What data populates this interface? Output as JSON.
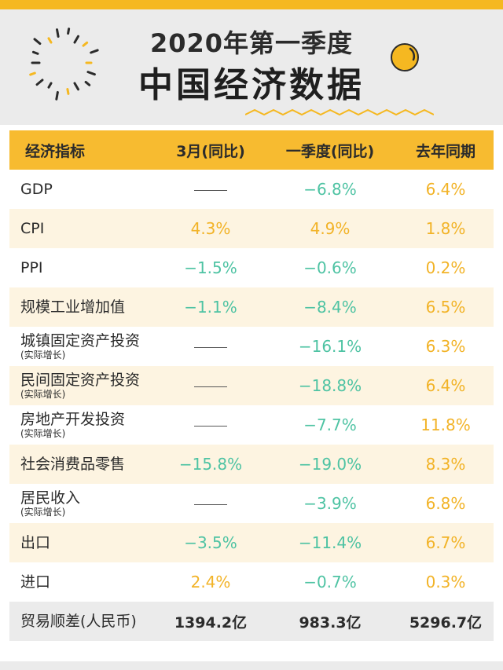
{
  "title": {
    "line1": "2020年第一季度",
    "line2": "中国经济数据"
  },
  "decor_icons": [
    "sun-ray-dots-icon",
    "yellow-dot-icon",
    "wave-line-icon"
  ],
  "colors": {
    "accent": "#f7bb30",
    "positive_yellow": "#f2b327",
    "negative_green": "#4ec3a3",
    "row_alt": "#fdf4e1"
  },
  "table": {
    "headers": [
      "经济指标",
      "3月(同比)",
      "一季度(同比)",
      "去年同期"
    ],
    "rows": [
      {
        "name": "GDP",
        "note": "",
        "m3": "",
        "m3_color": "dash",
        "q1": "−6.8%",
        "q1_color": "green",
        "ly": "6.4%",
        "ly_color": "yellow"
      },
      {
        "name": "CPI",
        "note": "",
        "m3": "4.3%",
        "m3_color": "yellow",
        "q1": "4.9%",
        "q1_color": "yellow",
        "ly": "1.8%",
        "ly_color": "yellow"
      },
      {
        "name": "PPI",
        "note": "",
        "m3": "−1.5%",
        "m3_color": "green",
        "q1": "−0.6%",
        "q1_color": "green",
        "ly": "0.2%",
        "ly_color": "yellow"
      },
      {
        "name": "规模工业增加值",
        "note": "",
        "m3": "−1.1%",
        "m3_color": "green",
        "q1": "−8.4%",
        "q1_color": "green",
        "ly": "6.5%",
        "ly_color": "yellow"
      },
      {
        "name": "城镇固定资产投资",
        "note": "(实际增长)",
        "m3": "",
        "m3_color": "dash",
        "q1": "−16.1%",
        "q1_color": "green",
        "ly": "6.3%",
        "ly_color": "yellow"
      },
      {
        "name": "民间固定资产投资",
        "note": "(实际增长)",
        "m3": "",
        "m3_color": "dash",
        "q1": "−18.8%",
        "q1_color": "green",
        "ly": "6.4%",
        "ly_color": "yellow"
      },
      {
        "name": "房地产开发投资",
        "note": "(实际增长)",
        "m3": "",
        "m3_color": "dash",
        "q1": "−7.7%",
        "q1_color": "green",
        "ly": "11.8%",
        "ly_color": "yellow"
      },
      {
        "name": "社会消费品零售",
        "note": "",
        "m3": "−15.8%",
        "m3_color": "green",
        "q1": "−19.0%",
        "q1_color": "green",
        "ly": "8.3%",
        "ly_color": "yellow"
      },
      {
        "name": "居民收入",
        "note": "(实际增长)",
        "m3": "",
        "m3_color": "dash",
        "q1": "−3.9%",
        "q1_color": "green",
        "ly": "6.8%",
        "ly_color": "yellow"
      },
      {
        "name": "出口",
        "note": "",
        "m3": "−3.5%",
        "m3_color": "green",
        "q1": "−11.4%",
        "q1_color": "green",
        "ly": "6.7%",
        "ly_color": "yellow"
      },
      {
        "name": "进口",
        "note": "",
        "m3": "2.4%",
        "m3_color": "yellow",
        "q1": "−0.7%",
        "q1_color": "green",
        "ly": "0.3%",
        "ly_color": "yellow"
      },
      {
        "name": "贸易顺差(人民币)",
        "note": "",
        "m3": "1394.2亿",
        "m3_color": "black",
        "q1": "983.3亿",
        "q1_color": "black",
        "ly": "5296.7亿",
        "ly_color": "black"
      }
    ]
  }
}
